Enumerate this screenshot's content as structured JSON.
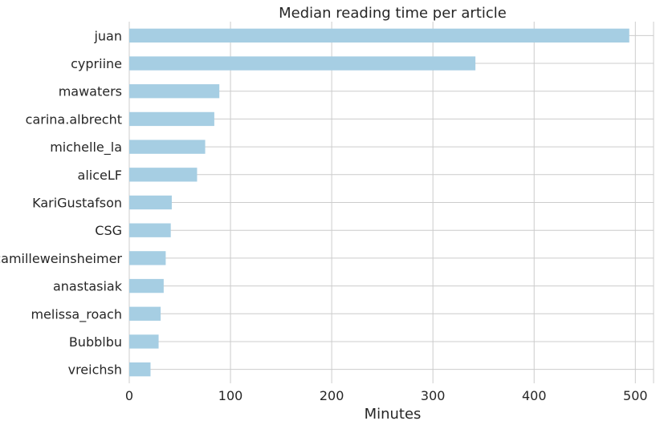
{
  "chart_data": {
    "type": "bar",
    "orientation": "horizontal",
    "title": "Median reading time per article",
    "xlabel": "Minutes",
    "ylabel": "",
    "categories": [
      "juan",
      "cypriine",
      "mawaters",
      "carina.albrecht",
      "michelle_la",
      "aliceLF",
      "KariGustafson",
      "CSG",
      "camilleweinsheimer",
      "anastasiak",
      "melissa_roach",
      "Bubblbu",
      "vreichsh"
    ],
    "values": [
      494,
      342,
      89,
      84,
      75,
      67,
      42,
      41,
      36,
      34,
      31,
      29,
      21
    ],
    "xlim": [
      0,
      518
    ],
    "xticks": [
      "0",
      "100",
      "200",
      "300",
      "400",
      "500"
    ],
    "grid": true,
    "bar_color": "#a6cee3"
  }
}
